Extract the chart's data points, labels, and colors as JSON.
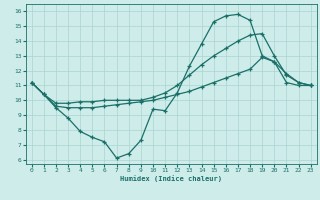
{
  "xlabel": "Humidex (Indice chaleur)",
  "bg_color": "#ceecea",
  "grid_color": "#aad4d0",
  "line_color": "#1a7068",
  "line1_x": [
    0,
    1,
    2,
    3,
    4,
    5,
    6,
    7,
    8,
    9,
    10,
    11,
    12,
    13,
    14,
    15,
    16,
    17,
    18,
    19,
    20,
    21,
    22,
    23
  ],
  "line1_y": [
    11.2,
    10.4,
    9.5,
    8.8,
    7.9,
    7.5,
    7.2,
    6.1,
    6.4,
    7.3,
    9.4,
    9.3,
    10.5,
    12.3,
    13.8,
    15.3,
    15.7,
    15.8,
    15.4,
    13.0,
    12.6,
    11.2,
    11.0,
    11.0
  ],
  "line2_x": [
    0,
    1,
    2,
    3,
    4,
    5,
    6,
    7,
    8,
    9,
    10,
    11,
    12,
    13,
    14,
    15,
    16,
    17,
    18,
    19,
    20,
    21,
    22,
    23
  ],
  "line2_y": [
    11.2,
    10.4,
    9.8,
    9.8,
    9.9,
    9.9,
    10.0,
    10.0,
    10.0,
    10.0,
    10.2,
    10.5,
    11.0,
    11.7,
    12.4,
    13.0,
    13.5,
    14.0,
    14.4,
    14.5,
    13.0,
    11.7,
    11.2,
    11.0
  ],
  "line3_x": [
    0,
    1,
    2,
    3,
    4,
    5,
    6,
    7,
    8,
    9,
    10,
    11,
    12,
    13,
    14,
    15,
    16,
    17,
    18,
    19,
    20,
    21,
    22,
    23
  ],
  "line3_y": [
    11.2,
    10.4,
    9.6,
    9.5,
    9.5,
    9.5,
    9.6,
    9.7,
    9.8,
    9.9,
    10.0,
    10.2,
    10.4,
    10.6,
    10.9,
    11.2,
    11.5,
    11.8,
    12.1,
    12.9,
    12.6,
    11.8,
    11.2,
    11.0
  ],
  "xlim": [
    -0.5,
    23.5
  ],
  "ylim": [
    5.7,
    16.5
  ],
  "yticks": [
    6,
    7,
    8,
    9,
    10,
    11,
    12,
    13,
    14,
    15,
    16
  ],
  "xticks": [
    0,
    1,
    2,
    3,
    4,
    5,
    6,
    7,
    8,
    9,
    10,
    11,
    12,
    13,
    14,
    15,
    16,
    17,
    18,
    19,
    20,
    21,
    22,
    23
  ]
}
